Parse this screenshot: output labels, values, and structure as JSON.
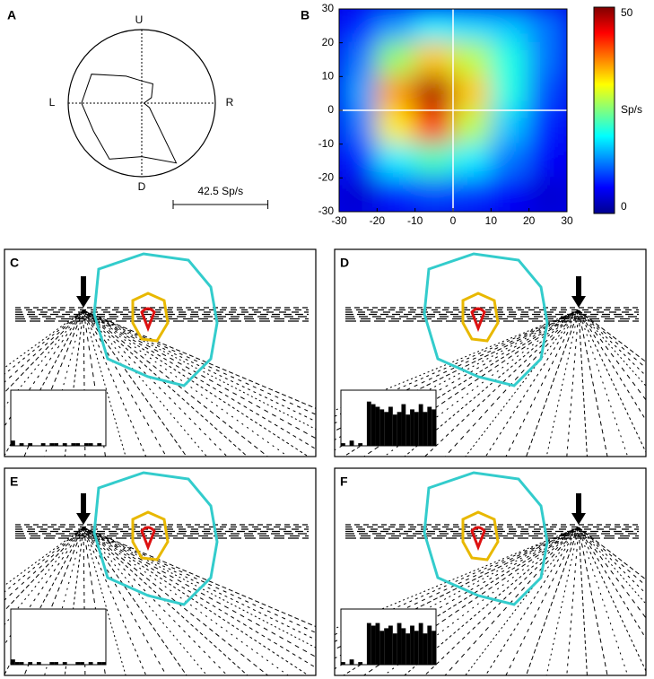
{
  "chart_data": [
    {
      "type": "polar",
      "panel": "A",
      "direction_labels": {
        "up": "U",
        "down": "D",
        "left": "L",
        "right": "R"
      },
      "theta": [
        0,
        30,
        60,
        90,
        120,
        150,
        180,
        210,
        240,
        270,
        300,
        330
      ],
      "values": [
        1,
        5,
        10,
        10,
        14,
        26,
        27,
        25,
        29,
        24,
        31,
        4
      ],
      "rlim": [
        0,
        33
      ],
      "scale_bar": {
        "value": 42.5,
        "label": "42.5 Sp/s"
      }
    },
    {
      "type": "heatmap",
      "panel": "B",
      "x": [
        -25,
        -15,
        -5,
        5,
        15,
        25
      ],
      "y": [
        25,
        15,
        5,
        -5,
        -15,
        -25
      ],
      "values": [
        [
          8,
          14,
          18,
          17,
          16,
          12
        ],
        [
          12,
          26,
          34,
          28,
          20,
          12
        ],
        [
          14,
          36,
          48,
          34,
          20,
          10
        ],
        [
          12,
          32,
          42,
          28,
          16,
          8
        ],
        [
          8,
          18,
          22,
          18,
          12,
          6
        ],
        [
          4,
          8,
          10,
          9,
          6,
          4
        ]
      ],
      "xlim": [
        -30,
        30
      ],
      "ylim": [
        -30,
        30
      ],
      "xticks": [
        -30,
        -20,
        -10,
        0,
        10,
        20,
        30
      ],
      "yticks": [
        -30,
        -20,
        -10,
        0,
        10,
        20,
        30
      ],
      "crosshair": {
        "x": 0,
        "y": 0
      },
      "colorbar": {
        "lim": [
          0,
          50
        ],
        "ticks": [
          0,
          50
        ],
        "label": "Sp/s"
      }
    },
    {
      "type": "bar",
      "panel": "C",
      "color": "#000000",
      "ylim": [
        0,
        20
      ],
      "values": [
        2,
        0,
        1,
        0,
        1,
        0,
        0,
        1,
        0,
        1,
        1,
        0,
        1,
        0,
        1,
        1,
        0,
        1,
        1,
        0,
        1,
        0
      ]
    },
    {
      "type": "bar",
      "panel": "D",
      "color": "#000000",
      "ylim": [
        0,
        20
      ],
      "values": [
        1,
        0,
        2,
        0,
        1,
        0,
        17,
        16,
        15,
        14,
        13,
        15,
        12,
        13,
        16,
        12,
        14,
        13,
        16,
        13,
        15,
        14
      ]
    },
    {
      "type": "bar",
      "panel": "E",
      "color": "#000000",
      "ylim": [
        0,
        20
      ],
      "values": [
        2,
        1,
        1,
        0,
        1,
        0,
        1,
        0,
        0,
        1,
        1,
        0,
        1,
        0,
        0,
        1,
        1,
        0,
        1,
        0,
        1,
        1
      ]
    },
    {
      "type": "bar",
      "panel": "F",
      "color": "#000000",
      "ylim": [
        0,
        20
      ],
      "values": [
        1,
        0,
        2,
        0,
        1,
        0,
        16,
        15,
        16,
        13,
        14,
        15,
        12,
        16,
        14,
        12,
        15,
        13,
        16,
        12,
        15,
        13
      ]
    }
  ]
}
